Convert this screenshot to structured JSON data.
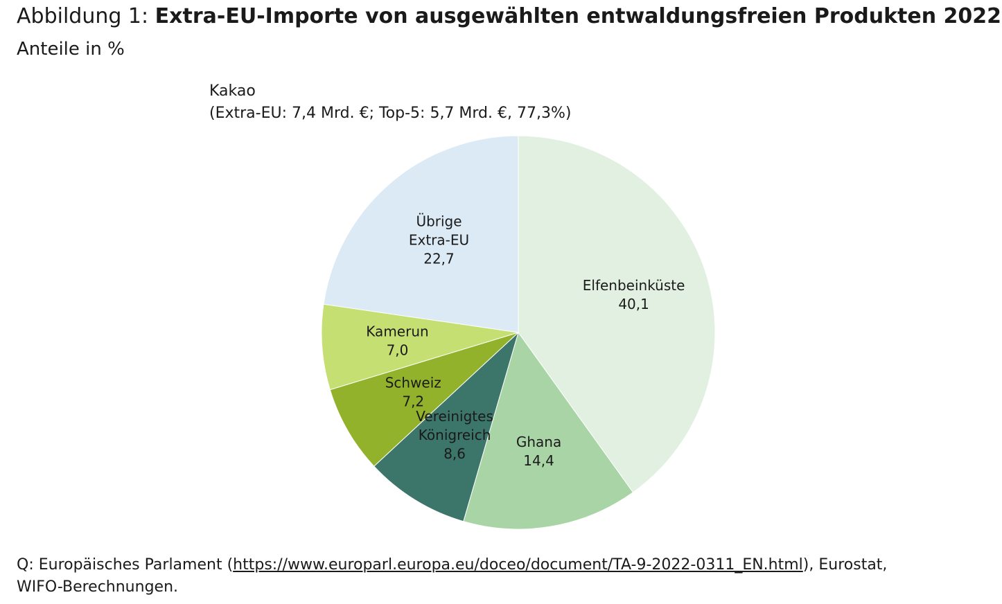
{
  "header": {
    "prefix": "Abbildung 1: ",
    "title": "Extra-EU-Importe von ausgewählten entwaldungsfreien Produkten 2022",
    "subtitle": "Anteile in %"
  },
  "chart_data": {
    "type": "pie",
    "title": "Kakao",
    "subtitle": "(Extra-EU: 7,4 Mrd. €; Top-5: 5,7 Mrd. €, 77,3%)",
    "unit": "%",
    "start_angle_deg": 0,
    "direction": "clockwise",
    "slices": [
      {
        "label": [
          "Elfenbeinküste"
        ],
        "value": 40.1,
        "value_label": "40,1",
        "color": "#e2f0e2"
      },
      {
        "label": [
          "Ghana"
        ],
        "value": 14.4,
        "value_label": "14,4",
        "color": "#a9d5a6"
      },
      {
        "label": [
          "Vereinigtes",
          "Königreich"
        ],
        "value": 8.6,
        "value_label": "8,6",
        "color": "#3c766b"
      },
      {
        "label": [
          "Schweiz"
        ],
        "value": 7.2,
        "value_label": "7,2",
        "color": "#93b22c"
      },
      {
        "label": [
          "Kamerun"
        ],
        "value": 7.0,
        "value_label": "7,0",
        "color": "#c6df72"
      },
      {
        "label": [
          "Übrige",
          "Extra-EU"
        ],
        "value": 22.7,
        "value_label": "22,7",
        "color": "#dceaf5"
      }
    ]
  },
  "footer": {
    "source_prefix": "Q: Europäisches Parlament (",
    "source_link": "https://www.europarl.europa.eu/doceo/document/TA-9-2022-0311_EN.html",
    "source_suffix": "), Eurostat,",
    "source_line2": "WIFO-Berechnungen."
  }
}
